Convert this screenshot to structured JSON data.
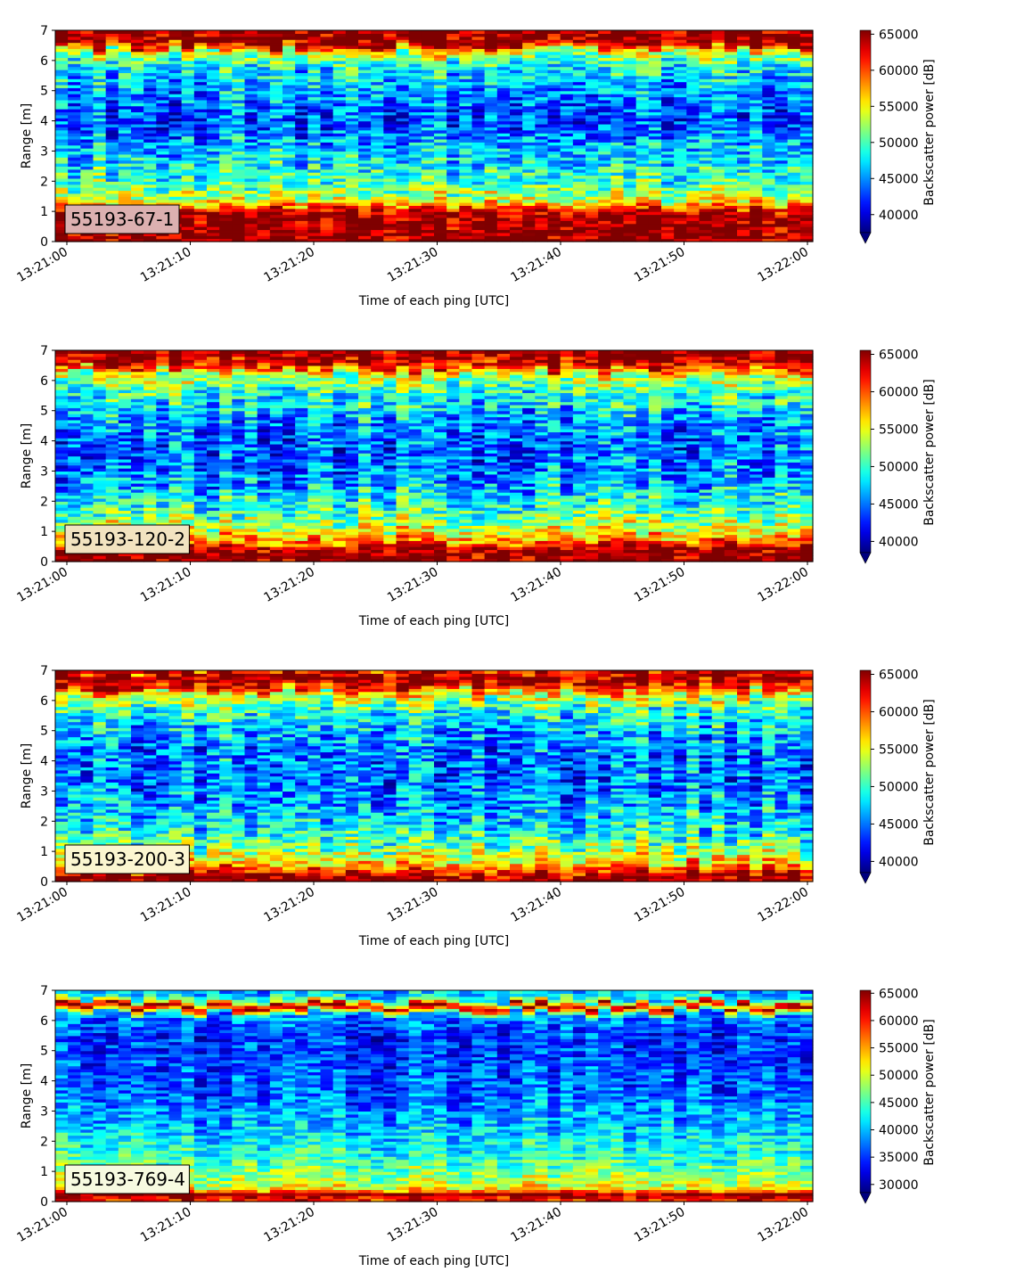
{
  "figure": {
    "xlabel": "Time of each ping [UTC]",
    "ylabel": "Range [m]",
    "colorbar_label": "Backscatter power [dB]"
  },
  "colors": {
    "colormap": "jet",
    "colormap_stops": [
      "#00007f",
      "#0000ff",
      "#007fff",
      "#00ffff",
      "#7fff7f",
      "#ffff00",
      "#ff7f00",
      "#ff0000",
      "#7f0000"
    ],
    "badge_edge": "#000000",
    "axis": "#000000"
  },
  "chart_data": [
    {
      "type": "heatmap",
      "label": "55193-67-1",
      "badge_color": "#dcb0b0",
      "x_ticks": [
        "13:21:00",
        "13:21:10",
        "13:21:20",
        "13:21:30",
        "13:21:40",
        "13:21:50",
        "13:22:00"
      ],
      "x_range": [
        "13:21:00",
        "13:22:00"
      ],
      "y_ticks": [
        0,
        1,
        2,
        3,
        4,
        5,
        6,
        7
      ],
      "ylim": [
        0,
        7
      ],
      "colorbar_ticks": [
        40000,
        45000,
        50000,
        55000,
        60000,
        65000
      ],
      "clim": [
        37500,
        65535
      ],
      "colorbar_extend": "min",
      "pings": 60,
      "profile": [
        {
          "range": 0.2,
          "value": 65535
        },
        {
          "range": 0.5,
          "value": 65535
        },
        {
          "range": 0.9,
          "value": 65535
        },
        {
          "range": 1.1,
          "value": 61000
        },
        {
          "range": 1.4,
          "value": 54000
        },
        {
          "range": 2.0,
          "value": 50000
        },
        {
          "range": 3.0,
          "value": 47000
        },
        {
          "range": 4.0,
          "value": 43000
        },
        {
          "range": 5.0,
          "value": 45500
        },
        {
          "range": 5.8,
          "value": 48500
        },
        {
          "range": 6.3,
          "value": 54000
        },
        {
          "range": 6.6,
          "value": 65535
        },
        {
          "range": 7.0,
          "value": 65535
        }
      ]
    },
    {
      "type": "heatmap",
      "label": "55193-120-2",
      "badge_color": "#f2e3c0",
      "x_ticks": [
        "13:21:00",
        "13:21:10",
        "13:21:20",
        "13:21:30",
        "13:21:40",
        "13:21:50",
        "13:22:00"
      ],
      "x_range": [
        "13:21:00",
        "13:22:00"
      ],
      "y_ticks": [
        0,
        1,
        2,
        3,
        4,
        5,
        6,
        7
      ],
      "ylim": [
        0,
        7
      ],
      "colorbar_ticks": [
        40000,
        45000,
        50000,
        55000,
        60000,
        65000
      ],
      "clim": [
        38500,
        65535
      ],
      "colorbar_extend": "min",
      "pings": 60,
      "profile": [
        {
          "range": 0.1,
          "value": 65535
        },
        {
          "range": 0.4,
          "value": 65535
        },
        {
          "range": 0.6,
          "value": 60000
        },
        {
          "range": 1.0,
          "value": 55000
        },
        {
          "range": 1.6,
          "value": 51000
        },
        {
          "range": 2.5,
          "value": 47000
        },
        {
          "range": 3.5,
          "value": 44500
        },
        {
          "range": 4.5,
          "value": 45500
        },
        {
          "range": 5.5,
          "value": 49500
        },
        {
          "range": 6.2,
          "value": 54000
        },
        {
          "range": 6.5,
          "value": 62000
        },
        {
          "range": 6.8,
          "value": 65535
        },
        {
          "range": 7.0,
          "value": 65535
        }
      ]
    },
    {
      "type": "heatmap",
      "label": "55193-200-3",
      "badge_color": "#fbf6d0",
      "x_ticks": [
        "13:21:00",
        "13:21:10",
        "13:21:20",
        "13:21:30",
        "13:21:40",
        "13:21:50",
        "13:22:00"
      ],
      "x_range": [
        "13:21:00",
        "13:22:00"
      ],
      "y_ticks": [
        0,
        1,
        2,
        3,
        4,
        5,
        6,
        7
      ],
      "ylim": [
        0,
        7
      ],
      "colorbar_ticks": [
        40000,
        45000,
        50000,
        55000,
        60000,
        65000
      ],
      "clim": [
        38500,
        65535
      ],
      "colorbar_extend": "min",
      "pings": 60,
      "profile": [
        {
          "range": 0.1,
          "value": 65535
        },
        {
          "range": 0.3,
          "value": 63000
        },
        {
          "range": 0.6,
          "value": 57000
        },
        {
          "range": 1.0,
          "value": 53000
        },
        {
          "range": 1.6,
          "value": 49500
        },
        {
          "range": 2.5,
          "value": 46500
        },
        {
          "range": 3.5,
          "value": 45000
        },
        {
          "range": 4.5,
          "value": 45500
        },
        {
          "range": 5.5,
          "value": 49000
        },
        {
          "range": 6.2,
          "value": 54500
        },
        {
          "range": 6.5,
          "value": 63000
        },
        {
          "range": 6.8,
          "value": 65535
        },
        {
          "range": 7.0,
          "value": 62000
        }
      ]
    },
    {
      "type": "heatmap",
      "label": "55193-769-4",
      "badge_color": "#f7fae0",
      "x_ticks": [
        "13:21:00",
        "13:21:10",
        "13:21:20",
        "13:21:30",
        "13:21:40",
        "13:21:50",
        "13:22:00"
      ],
      "x_range": [
        "13:21:00",
        "13:22:00"
      ],
      "y_ticks": [
        0,
        1,
        2,
        3,
        4,
        5,
        6,
        7
      ],
      "ylim": [
        0,
        7
      ],
      "colorbar_ticks": [
        30000,
        35000,
        40000,
        45000,
        50000,
        55000,
        60000,
        65000
      ],
      "clim": [
        28500,
        65535
      ],
      "colorbar_extend": "min",
      "pings": 60,
      "profile": [
        {
          "range": 0.1,
          "value": 60000
        },
        {
          "range": 0.25,
          "value": 65535
        },
        {
          "range": 0.4,
          "value": 52000
        },
        {
          "range": 0.8,
          "value": 48000
        },
        {
          "range": 1.5,
          "value": 44000
        },
        {
          "range": 2.5,
          "value": 40000
        },
        {
          "range": 3.5,
          "value": 37000
        },
        {
          "range": 4.5,
          "value": 35500
        },
        {
          "range": 5.5,
          "value": 35000
        },
        {
          "range": 6.2,
          "value": 38000
        },
        {
          "range": 6.5,
          "value": 65535
        },
        {
          "range": 6.7,
          "value": 44000
        },
        {
          "range": 7.0,
          "value": 39000
        }
      ]
    }
  ]
}
